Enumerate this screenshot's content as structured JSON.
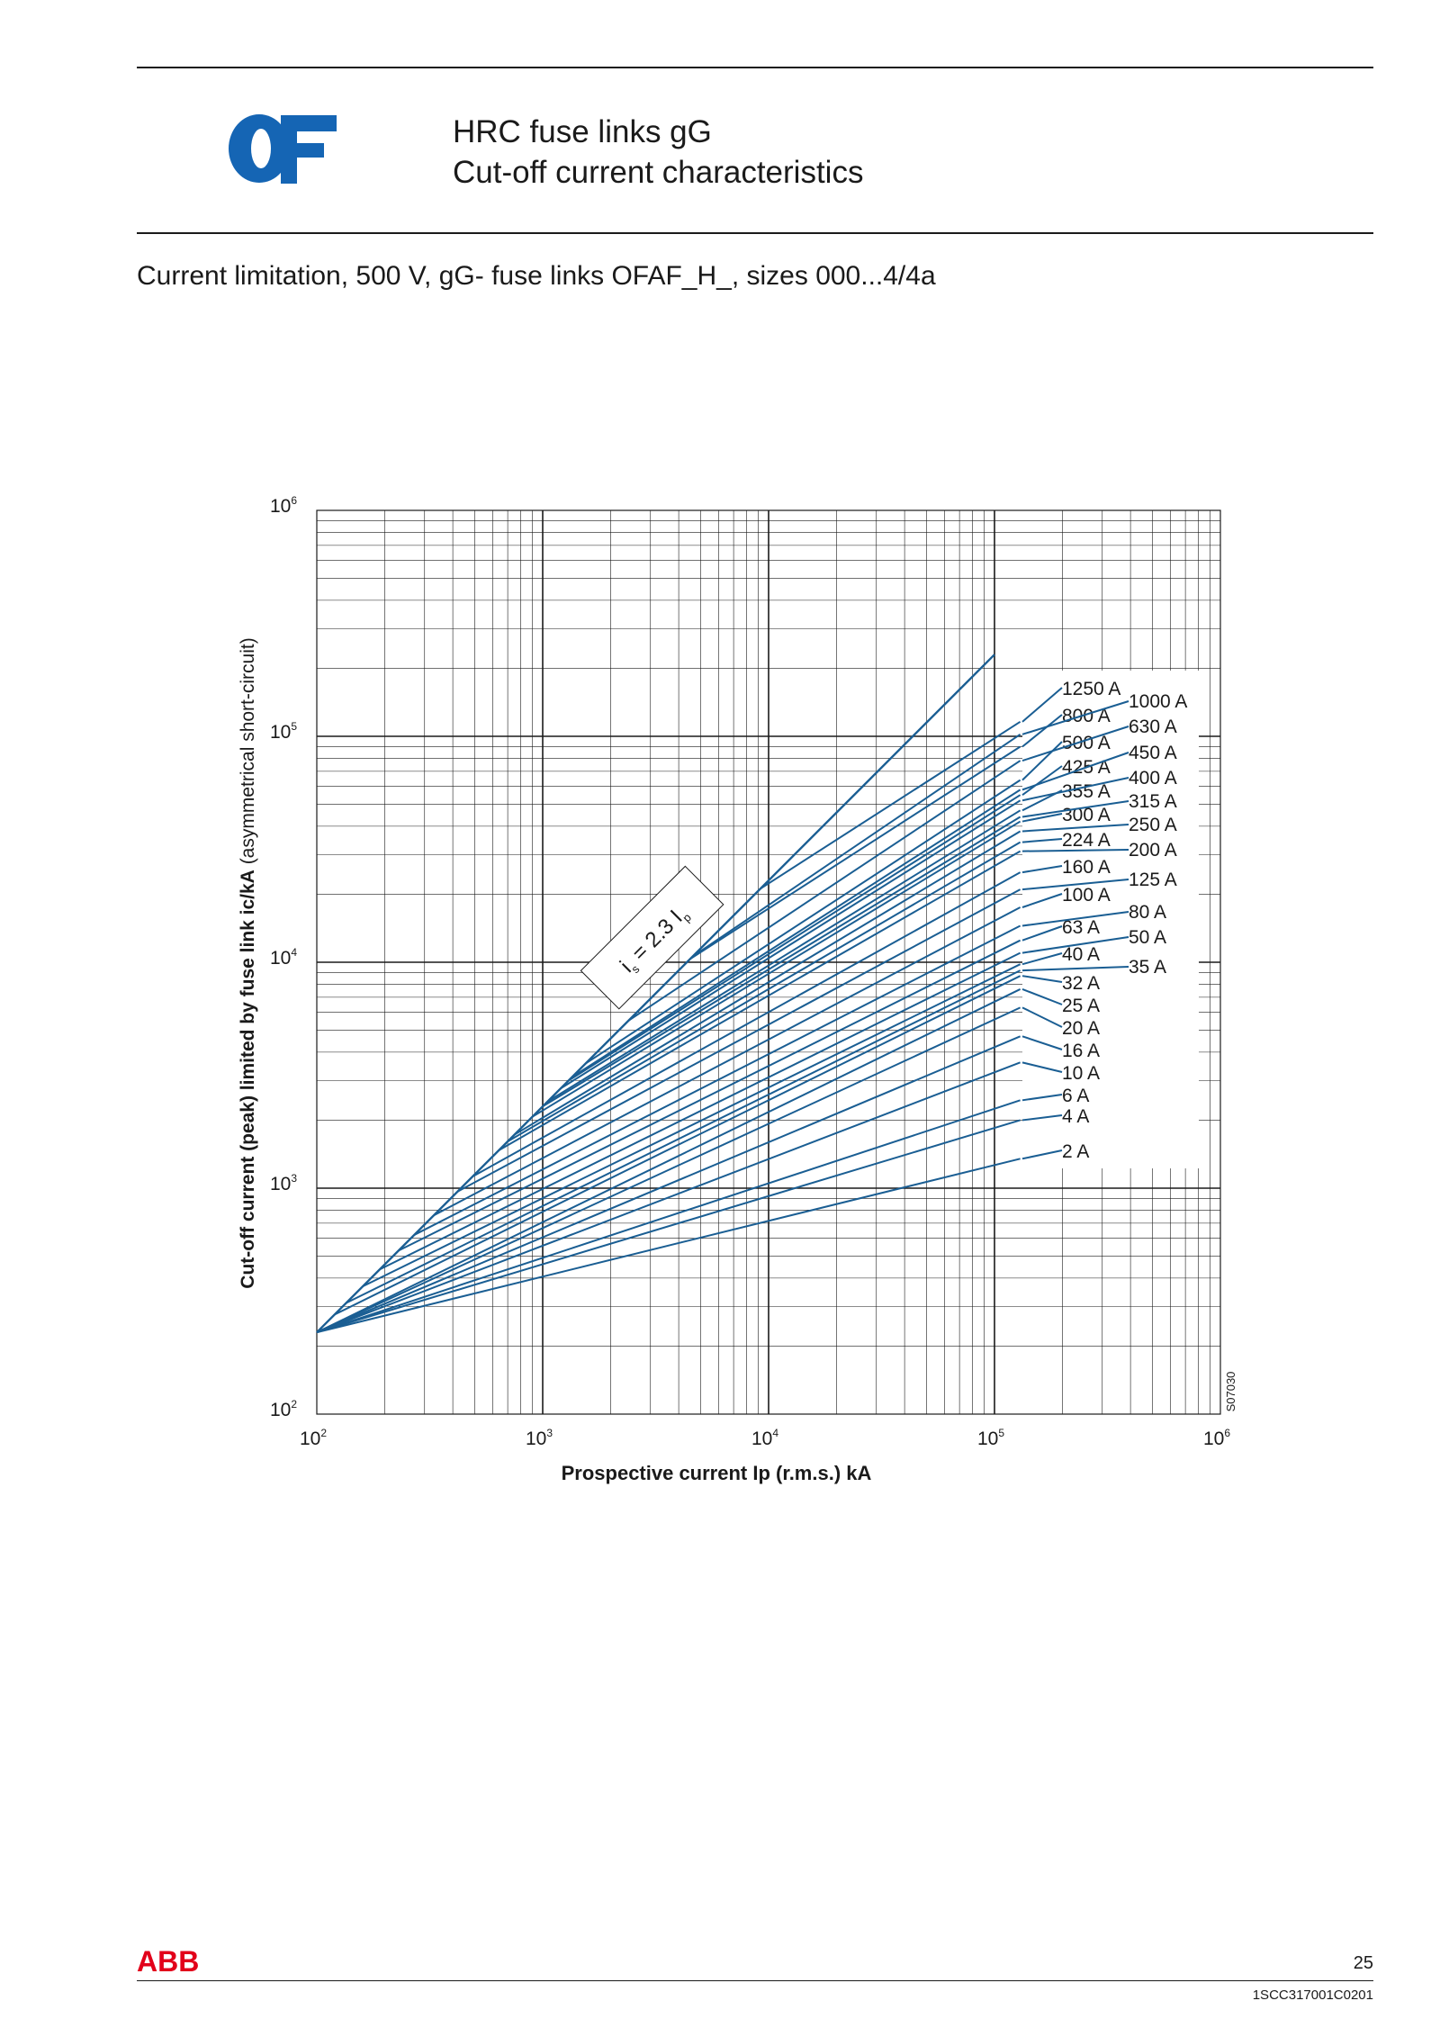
{
  "header": {
    "logo_text": "OF",
    "title_line1": "HRC fuse links gG",
    "title_line2": "Cut-off current characteristics"
  },
  "subtitle": "Current limitation, 500 V, gG- fuse links OFAF_H_, sizes 000...4/4a",
  "colors": {
    "curve": "#1a5e93",
    "grid": "#1a1a1a",
    "brand": "#1565b4",
    "abb": "#e2001a"
  },
  "chart_data": {
    "type": "line",
    "xlabel": "Prospective current Ip (r.m.s.) kA",
    "ylabel_bold": "Cut-off current (peak) limited by fuse link ic/kA",
    "ylabel_normal": " (asymmetrical short-circuit)",
    "xscale": "log",
    "yscale": "log",
    "xlim": [
      100,
      1000000
    ],
    "ylim": [
      100,
      1000000
    ],
    "x_ticks": [
      {
        "base": "10",
        "exp": "2",
        "value": 100
      },
      {
        "base": "10",
        "exp": "3",
        "value": 1000
      },
      {
        "base": "10",
        "exp": "4",
        "value": 10000
      },
      {
        "base": "10",
        "exp": "5",
        "value": 100000
      },
      {
        "base": "10",
        "exp": "6",
        "value": 1000000
      }
    ],
    "y_ticks": [
      {
        "base": "10",
        "exp": "2",
        "value": 100
      },
      {
        "base": "10",
        "exp": "3",
        "value": 1000
      },
      {
        "base": "10",
        "exp": "4",
        "value": 10000
      },
      {
        "base": "10",
        "exp": "5",
        "value": 100000
      },
      {
        "base": "10",
        "exp": "6",
        "value": 1000000
      }
    ],
    "grid": true,
    "reference_line": {
      "label_main": "i",
      "label_sub": "s",
      "label_mid": " = 2.3 I",
      "label_sub2": "p",
      "slope_factor": 2.3,
      "x": [
        100,
        100000
      ]
    },
    "figure_code": "S07030",
    "series": [
      {
        "name": "1250 A",
        "x1": 9200,
        "x2": 130000,
        "y2": 116000
      },
      {
        "name": "1000 A",
        "x1": 4600,
        "x2": 130000,
        "y2": 102000
      },
      {
        "name": "800 A",
        "x1": 4500,
        "x2": 130000,
        "y2": 90000
      },
      {
        "name": "630 A",
        "x1": 2400,
        "x2": 130000,
        "y2": 78000
      },
      {
        "name": "500 A",
        "x1": 1550,
        "x2": 130000,
        "y2": 64000
      },
      {
        "name": "450 A",
        "x1": 1350,
        "x2": 130000,
        "y2": 58000
      },
      {
        "name": "425 A",
        "x1": 1300,
        "x2": 130000,
        "y2": 55000
      },
      {
        "name": "400 A",
        "x1": 1200,
        "x2": 130000,
        "y2": 52000
      },
      {
        "name": "355 A",
        "x1": 1050,
        "x2": 130000,
        "y2": 47000
      },
      {
        "name": "315 A",
        "x1": 1000,
        "x2": 130000,
        "y2": 44000
      },
      {
        "name": "300 A",
        "x1": 900,
        "x2": 130000,
        "y2": 42000
      },
      {
        "name": "250 A",
        "x1": 750,
        "x2": 130000,
        "y2": 38000
      },
      {
        "name": "224 A",
        "x1": 700,
        "x2": 130000,
        "y2": 34000
      },
      {
        "name": "200 A",
        "x1": 640,
        "x2": 130000,
        "y2": 31000
      },
      {
        "name": "160 A",
        "x1": 490,
        "x2": 130000,
        "y2": 25000
      },
      {
        "name": "125 A",
        "x1": 420,
        "x2": 130000,
        "y2": 21000
      },
      {
        "name": "100 A",
        "x1": 330,
        "x2": 130000,
        "y2": 17500
      },
      {
        "name": "80 A",
        "x1": 270,
        "x2": 130000,
        "y2": 14500
      },
      {
        "name": "63 A",
        "x1": 230,
        "x2": 130000,
        "y2": 12500
      },
      {
        "name": "50 A",
        "x1": 190,
        "x2": 130000,
        "y2": 11000
      },
      {
        "name": "40 A",
        "x1": 160,
        "x2": 130000,
        "y2": 9800
      },
      {
        "name": "35 A",
        "x1": 135,
        "x2": 130000,
        "y2": 9200
      },
      {
        "name": "32 A",
        "x1": 120,
        "x2": 130000,
        "y2": 8700
      },
      {
        "name": "25 A",
        "x1": 100,
        "x2": 130000,
        "y2": 7600
      },
      {
        "name": "20 A",
        "x1": 100,
        "x2": 130000,
        "y2": 6300
      },
      {
        "name": "16 A",
        "x1": 100,
        "x2": 130000,
        "y2": 4700
      },
      {
        "name": "10 A",
        "x1": 100,
        "x2": 130000,
        "y2": 3600
      },
      {
        "name": "6 A",
        "x1": 100,
        "x2": 130000,
        "y2": 2450
      },
      {
        "name": "4 A",
        "x1": 100,
        "x2": 130000,
        "y2": 2000
      },
      {
        "name": "2 A",
        "x1": 100,
        "x2": 130000,
        "y2": 1350
      }
    ]
  },
  "footer": {
    "brand": "ABB",
    "page_number": "25",
    "doc_code": "1SCC317001C0201"
  }
}
